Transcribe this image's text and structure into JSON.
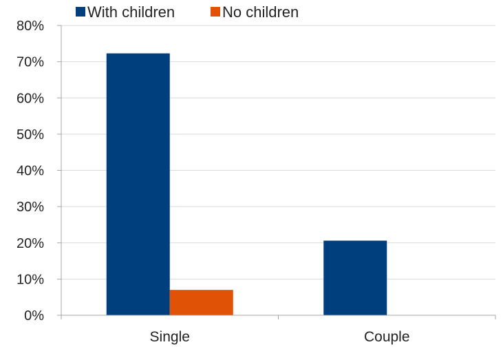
{
  "chart_data": {
    "type": "bar",
    "categories": [
      "Single",
      "Couple"
    ],
    "series": [
      {
        "name": "With children",
        "color": "#003f7d",
        "values": [
          0.723,
          0.206
        ]
      },
      {
        "name": "No children",
        "color": "#e05206",
        "values": [
          0.07,
          0.0
        ]
      }
    ],
    "ylim": [
      0,
      0.8
    ],
    "yticks": [
      0,
      0.1,
      0.2,
      0.3,
      0.4,
      0.5,
      0.6,
      0.7,
      0.8
    ],
    "ytick_labels": [
      "0%",
      "10%",
      "20%",
      "30%",
      "40%",
      "50%",
      "60%",
      "70%",
      "80%"
    ],
    "grid": true,
    "legend_position": "top-left",
    "colors": {
      "gridline": "#d9d9d9",
      "axis": "#a6a6a6"
    }
  }
}
